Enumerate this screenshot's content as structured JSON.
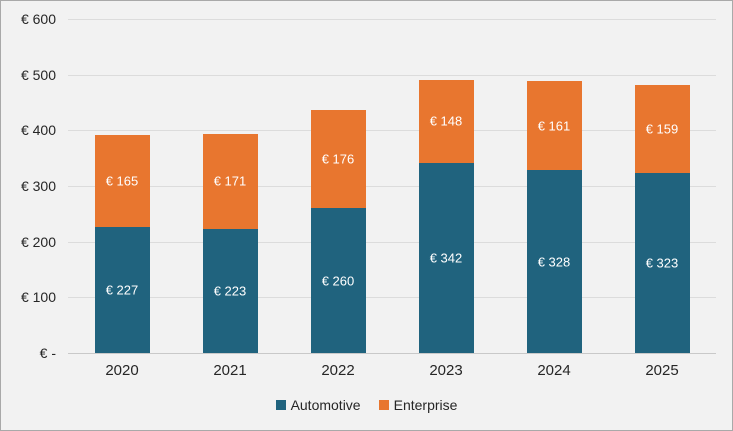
{
  "chart_data": {
    "type": "bar",
    "stacked": true,
    "categories": [
      "2020",
      "2021",
      "2022",
      "2023",
      "2024",
      "2025"
    ],
    "series": [
      {
        "name": "Automotive",
        "color": "#20637E",
        "values": [
          227,
          223,
          260,
          342,
          328,
          323
        ]
      },
      {
        "name": "Enterprise",
        "color": "#E8762F",
        "values": [
          165,
          171,
          176,
          148,
          161,
          159
        ]
      }
    ],
    "value_prefix": "€ ",
    "y_ticks": [
      "€ -",
      "€ 100",
      "€ 200",
      "€ 300",
      "€ 400",
      "€ 500",
      "€ 600"
    ],
    "ylim": [
      0,
      600
    ],
    "grid": true,
    "legend_position": "bottom"
  },
  "colors": {
    "background": "#F2F2F2",
    "border": "#A9A9A9",
    "gridline": "#DCDCDC",
    "axis_line": "#C9C9C9",
    "tick_text": "#262626",
    "data_label_text": "#FFFFFF"
  }
}
